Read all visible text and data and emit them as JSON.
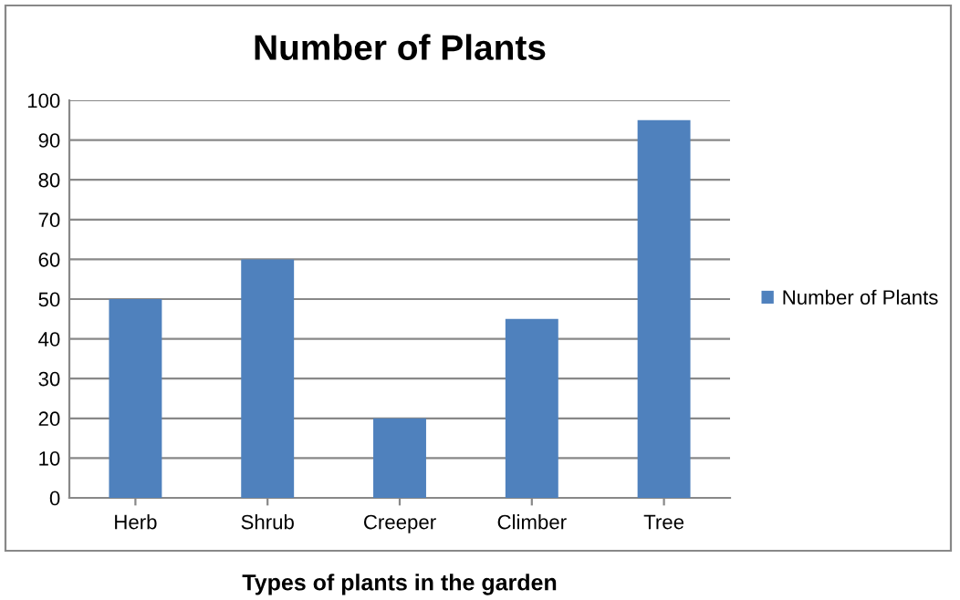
{
  "chart_data": {
    "type": "bar",
    "title": "Number of Plants",
    "xlabel": "Types of plants in the garden",
    "categories": [
      "Herb",
      "Shrub",
      "Creeper",
      "Climber",
      "Tree"
    ],
    "series": [
      {
        "name": "Number of Plants",
        "color": "#4f81bd",
        "values": [
          50,
          60,
          20,
          45,
          95
        ]
      }
    ],
    "ylim": [
      0,
      100
    ],
    "yticks": [
      0,
      10,
      20,
      30,
      40,
      50,
      60,
      70,
      80,
      90,
      100
    ],
    "grid": "y",
    "legend": "right"
  }
}
